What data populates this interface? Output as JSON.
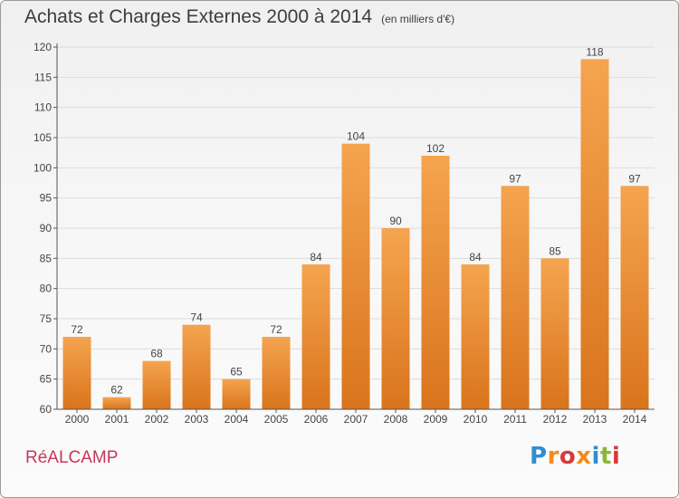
{
  "title": "Achats et Charges Externes 2000 à 2014",
  "unit_note": "(en milliers d'€)",
  "town": "RéALCAMP",
  "logo": {
    "letters": [
      "P",
      "r",
      "o",
      "x",
      "i",
      "t",
      "i"
    ],
    "colors": [
      "#2f8fd0",
      "#f28c1e",
      "#d8383a",
      "#f28c1e",
      "#2f8fd0",
      "#8ab63a",
      "#d8383a"
    ]
  },
  "colors": {
    "bar_top": "#f5a44f",
    "bar_bottom": "#d9741c",
    "axis": "#555555",
    "grid": "#dddddd"
  },
  "chart_data": {
    "type": "bar",
    "categories": [
      "2000",
      "2001",
      "2002",
      "2003",
      "2004",
      "2005",
      "2006",
      "2007",
      "2008",
      "2009",
      "2010",
      "2011",
      "2012",
      "2013",
      "2014"
    ],
    "values": [
      72,
      62,
      68,
      74,
      65,
      72,
      84,
      104,
      90,
      102,
      84,
      97,
      85,
      118,
      97
    ],
    "ylim": [
      60,
      120
    ],
    "yticks": [
      60,
      65,
      70,
      75,
      80,
      85,
      90,
      95,
      100,
      105,
      110,
      115,
      120
    ],
    "grid": true,
    "xlabel": "",
    "ylabel": ""
  }
}
